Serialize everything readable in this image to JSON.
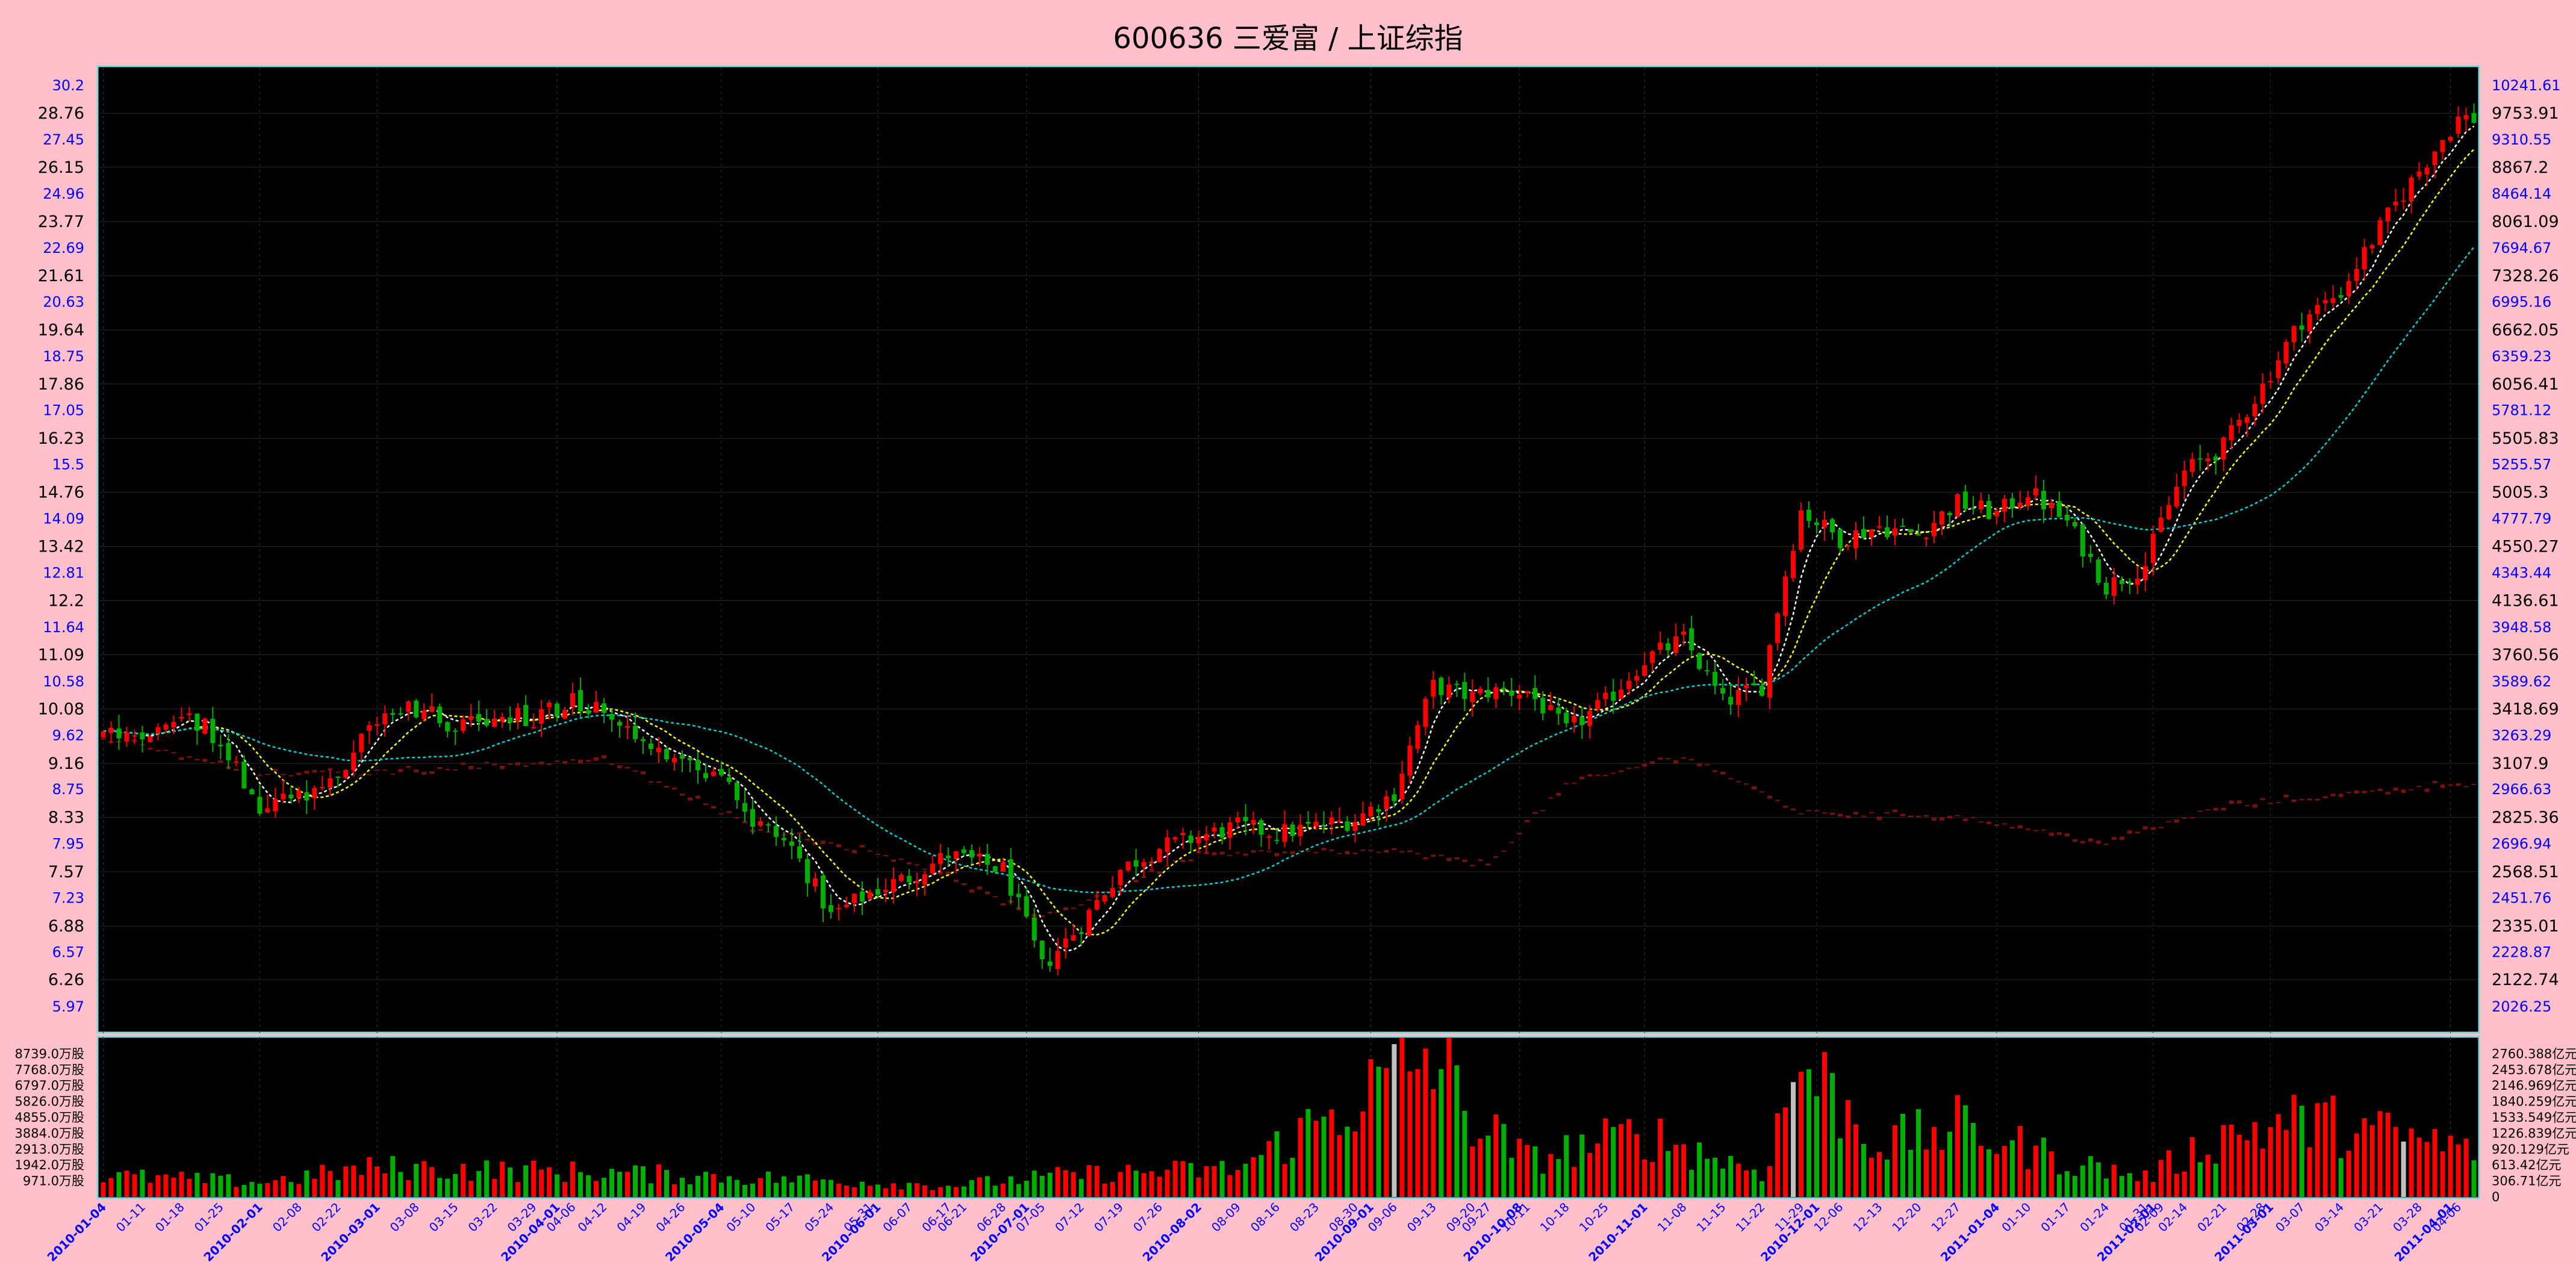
{
  "title": "600636 三爱富 / 上证综指",
  "colors": {
    "background": "#ffc0cb",
    "panel": "#000000",
    "panel_border": "#7fd7d7",
    "up_candle": "#ff0000",
    "down_candle": "#00b000",
    "ma_short": "#ffffff",
    "ma_mid": "#ffff00",
    "ma_long": "#00d0d0",
    "index_candles": "#7a1010",
    "price_axis_labels": "#000000",
    "log_axis_labels": "#0000ff",
    "date_labels": "#0000ff",
    "highlight_volume": "#c0c0c0"
  },
  "chart_data": {
    "type": "candlestick",
    "title": "600636 三爱富 / 上证综指",
    "grid": true,
    "x_range": [
      "2010-01-04",
      "2011-04-08"
    ],
    "price_axis": {
      "left_black": [
        "28.76",
        "26.15",
        "23.77",
        "21.61",
        "19.64",
        "17.86",
        "16.23",
        "14.76",
        "13.42",
        "12.2",
        "11.09",
        "10.08",
        "9.16",
        "8.33",
        "7.57",
        "6.88",
        "6.26"
      ],
      "left_blue": [
        "30.2",
        "27.45",
        "24.96",
        "22.69",
        "20.63",
        "18.75",
        "17.05",
        "15.5",
        "14.09",
        "12.81",
        "11.64",
        "10.58",
        "9.62",
        "8.75",
        "7.95",
        "7.23",
        "6.57",
        "5.97"
      ],
      "right_black": [
        "9753.91",
        "8867.2",
        "8061.09",
        "7328.26",
        "6662.05",
        "6056.41",
        "5505.83",
        "5005.3",
        "4550.27",
        "4136.61",
        "3760.56",
        "3418.69",
        "3107.9",
        "2825.36",
        "2568.51",
        "2335.01",
        "2122.74"
      ],
      "right_blue": [
        "10241.61",
        "9310.55",
        "8464.14",
        "7694.67",
        "6995.16",
        "6359.23",
        "5781.12",
        "5255.57",
        "4777.79",
        "4343.44",
        "3948.58",
        "3589.62",
        "3263.29",
        "2966.63",
        "2696.94",
        "2451.76",
        "2228.87",
        "2026.25"
      ],
      "log_scale": true,
      "ylim": [
        5.97,
        30.2
      ]
    },
    "volume_axis": {
      "left": [
        "8739.0万股",
        "7768.0万股",
        "6797.0万股",
        "5826.0万股",
        "4855.0万股",
        "3884.0万股",
        "2913.0万股",
        "1942.0万股",
        "971.0万股"
      ],
      "right": [
        "2760.388亿元",
        "2453.678亿元",
        "2146.969亿元",
        "1840.259亿元",
        "1533.549亿元",
        "1226.839亿元",
        "920.129亿元",
        "613.42亿元",
        "306.71亿元",
        "0"
      ]
    },
    "x_tick_labels": [
      {
        "date": "2010-01-04",
        "label": "2010-01-04",
        "bold": true
      },
      {
        "date": "2010-01-11",
        "label": "01-11"
      },
      {
        "date": "2010-01-18",
        "label": "01-18"
      },
      {
        "date": "2010-01-25",
        "label": "01-25"
      },
      {
        "date": "2010-02-01",
        "label": "2010-02-01",
        "bold": true
      },
      {
        "date": "2010-02-08",
        "label": "02-08"
      },
      {
        "date": "2010-02-22",
        "label": "02-22"
      },
      {
        "date": "2010-03-01",
        "label": "2010-03-01",
        "bold": true
      },
      {
        "date": "2010-03-08",
        "label": "03-08"
      },
      {
        "date": "2010-03-15",
        "label": "03-15"
      },
      {
        "date": "2010-03-22",
        "label": "03-22"
      },
      {
        "date": "2010-03-29",
        "label": "03-29"
      },
      {
        "date": "2010-04-01",
        "label": "2010-04-01",
        "bold": true
      },
      {
        "date": "2010-04-06",
        "label": "04-06"
      },
      {
        "date": "2010-04-12",
        "label": "04-12"
      },
      {
        "date": "2010-04-19",
        "label": "04-19"
      },
      {
        "date": "2010-04-26",
        "label": "04-26"
      },
      {
        "date": "2010-05-04",
        "label": "2010-05-04",
        "bold": true
      },
      {
        "date": "2010-05-10",
        "label": "05-10"
      },
      {
        "date": "2010-05-17",
        "label": "05-17"
      },
      {
        "date": "2010-05-24",
        "label": "05-24"
      },
      {
        "date": "2010-05-31",
        "label": "05-31"
      },
      {
        "date": "2010-06-01",
        "label": "2010-06-01",
        "bold": true
      },
      {
        "date": "2010-06-07",
        "label": "06-07"
      },
      {
        "date": "2010-06-17",
        "label": "06-17"
      },
      {
        "date": "2010-06-21",
        "label": "06-21"
      },
      {
        "date": "2010-06-28",
        "label": "06-28"
      },
      {
        "date": "2010-07-01",
        "label": "2010-07-01",
        "bold": true
      },
      {
        "date": "2010-07-05",
        "label": "07-05"
      },
      {
        "date": "2010-07-12",
        "label": "07-12"
      },
      {
        "date": "2010-07-19",
        "label": "07-19"
      },
      {
        "date": "2010-07-26",
        "label": "07-26"
      },
      {
        "date": "2010-08-02",
        "label": "2010-08-02",
        "bold": true
      },
      {
        "date": "2010-08-09",
        "label": "08-09"
      },
      {
        "date": "2010-08-16",
        "label": "08-16"
      },
      {
        "date": "2010-08-23",
        "label": "08-23"
      },
      {
        "date": "2010-08-30",
        "label": "08-30"
      },
      {
        "date": "2010-09-01",
        "label": "2010-09-01",
        "bold": true
      },
      {
        "date": "2010-09-06",
        "label": "09-06"
      },
      {
        "date": "2010-09-13",
        "label": "09-13"
      },
      {
        "date": "2010-09-20",
        "label": "09-20"
      },
      {
        "date": "2010-09-27",
        "label": "09-27"
      },
      {
        "date": "2010-10-08",
        "label": "2010-10-08",
        "bold": true
      },
      {
        "date": "2010-10-11",
        "label": "10-11"
      },
      {
        "date": "2010-10-18",
        "label": "10-18"
      },
      {
        "date": "2010-10-25",
        "label": "10-25"
      },
      {
        "date": "2010-11-01",
        "label": "2010-11-01",
        "bold": true
      },
      {
        "date": "2010-11-08",
        "label": "11-08"
      },
      {
        "date": "2010-11-15",
        "label": "11-15"
      },
      {
        "date": "2010-11-22",
        "label": "11-22"
      },
      {
        "date": "2010-11-29",
        "label": "11-29"
      },
      {
        "date": "2010-12-01",
        "label": "2010-12-01",
        "bold": true
      },
      {
        "date": "2010-12-06",
        "label": "12-06"
      },
      {
        "date": "2010-12-13",
        "label": "12-13"
      },
      {
        "date": "2010-12-20",
        "label": "12-20"
      },
      {
        "date": "2010-12-27",
        "label": "12-27"
      },
      {
        "date": "2011-01-04",
        "label": "2011-01-04",
        "bold": true
      },
      {
        "date": "2011-01-10",
        "label": "01-10"
      },
      {
        "date": "2011-01-17",
        "label": "01-17"
      },
      {
        "date": "2011-01-24",
        "label": "01-24"
      },
      {
        "date": "2011-01-31",
        "label": "01-31"
      },
      {
        "date": "2011-02-01",
        "label": "2011-02-01",
        "bold": true
      },
      {
        "date": "2011-02-09",
        "label": "02-09"
      },
      {
        "date": "2011-02-14",
        "label": "02-14"
      },
      {
        "date": "2011-02-21",
        "label": "02-21"
      },
      {
        "date": "2011-02-28",
        "label": "02-28"
      },
      {
        "date": "2011-03-01",
        "label": "2011-03-01",
        "bold": true
      },
      {
        "date": "2011-03-07",
        "label": "03-07"
      },
      {
        "date": "2011-03-14",
        "label": "03-14"
      },
      {
        "date": "2011-03-21",
        "label": "03-21"
      },
      {
        "date": "2011-03-28",
        "label": "03-28"
      },
      {
        "date": "2011-04-01",
        "label": "2011-04-01",
        "bold": true
      },
      {
        "date": "2011-04-06",
        "label": "04-06"
      }
    ],
    "price_keypoints": [
      {
        "date": "2010-01-04",
        "close": 9.7
      },
      {
        "date": "2010-01-11",
        "close": 9.6
      },
      {
        "date": "2010-01-18",
        "close": 10.1
      },
      {
        "date": "2010-01-25",
        "close": 9.5
      },
      {
        "date": "2010-02-01",
        "close": 8.45
      },
      {
        "date": "2010-02-08",
        "close": 8.6
      },
      {
        "date": "2010-02-22",
        "close": 9.0
      },
      {
        "date": "2010-03-01",
        "close": 9.9
      },
      {
        "date": "2010-03-08",
        "close": 10.1
      },
      {
        "date": "2010-03-15",
        "close": 9.8
      },
      {
        "date": "2010-03-22",
        "close": 10.0
      },
      {
        "date": "2010-03-29",
        "close": 9.9
      },
      {
        "date": "2010-04-06",
        "close": 10.2
      },
      {
        "date": "2010-04-12",
        "close": 10.1
      },
      {
        "date": "2010-04-19",
        "close": 9.5
      },
      {
        "date": "2010-04-26",
        "close": 9.3
      },
      {
        "date": "2010-05-04",
        "close": 8.9
      },
      {
        "date": "2010-05-10",
        "close": 8.3
      },
      {
        "date": "2010-05-17",
        "close": 7.9
      },
      {
        "date": "2010-05-24",
        "close": 7.0
      },
      {
        "date": "2010-05-31",
        "close": 7.3
      },
      {
        "date": "2010-06-07",
        "close": 7.5
      },
      {
        "date": "2010-06-17",
        "close": 7.8
      },
      {
        "date": "2010-06-28",
        "close": 7.6
      },
      {
        "date": "2010-07-05",
        "close": 6.4
      },
      {
        "date": "2010-07-12",
        "close": 6.9
      },
      {
        "date": "2010-07-19",
        "close": 7.6
      },
      {
        "date": "2010-07-26",
        "close": 7.9
      },
      {
        "date": "2010-08-09",
        "close": 8.2
      },
      {
        "date": "2010-08-16",
        "close": 8.1
      },
      {
        "date": "2010-08-30",
        "close": 8.3
      },
      {
        "date": "2010-09-06",
        "close": 8.7
      },
      {
        "date": "2010-09-13",
        "close": 10.5
      },
      {
        "date": "2010-09-20",
        "close": 10.3
      },
      {
        "date": "2010-09-27",
        "close": 10.4
      },
      {
        "date": "2010-10-11",
        "close": 10.4
      },
      {
        "date": "2010-10-18",
        "close": 9.7
      },
      {
        "date": "2010-10-25",
        "close": 10.2
      },
      {
        "date": "2010-11-01",
        "close": 11.0
      },
      {
        "date": "2010-11-08",
        "close": 11.4
      },
      {
        "date": "2010-11-15",
        "close": 10.2
      },
      {
        "date": "2010-11-22",
        "close": 10.5
      },
      {
        "date": "2010-11-29",
        "close": 14.3
      },
      {
        "date": "2010-12-06",
        "close": 13.6
      },
      {
        "date": "2010-12-13",
        "close": 13.9
      },
      {
        "date": "2010-12-20",
        "close": 13.7
      },
      {
        "date": "2010-12-27",
        "close": 14.5
      },
      {
        "date": "2011-01-04",
        "close": 14.2
      },
      {
        "date": "2011-01-10",
        "close": 14.8
      },
      {
        "date": "2011-01-17",
        "close": 14.0
      },
      {
        "date": "2011-01-24",
        "close": 12.5
      },
      {
        "date": "2011-01-31",
        "close": 13.0
      },
      {
        "date": "2011-02-09",
        "close": 14.0
      },
      {
        "date": "2011-02-14",
        "close": 15.3
      },
      {
        "date": "2011-02-21",
        "close": 16.0
      },
      {
        "date": "2011-02-28",
        "close": 17.8
      },
      {
        "date": "2011-03-07",
        "close": 20.0
      },
      {
        "date": "2011-03-14",
        "close": 21.0
      },
      {
        "date": "2011-03-21",
        "close": 23.5
      },
      {
        "date": "2011-03-28",
        "close": 26.0
      },
      {
        "date": "2011-04-06",
        "close": 28.5
      }
    ],
    "index_keypoints": [
      {
        "date": "2010-01-04",
        "close": 3250
      },
      {
        "date": "2010-02-01",
        "close": 3050
      },
      {
        "date": "2010-03-01",
        "close": 3060
      },
      {
        "date": "2010-04-12",
        "close": 3130
      },
      {
        "date": "2010-05-10",
        "close": 2780
      },
      {
        "date": "2010-06-07",
        "close": 2620
      },
      {
        "date": "2010-07-05",
        "close": 2360
      },
      {
        "date": "2010-08-02",
        "close": 2650
      },
      {
        "date": "2010-09-06",
        "close": 2660
      },
      {
        "date": "2010-09-27",
        "close": 2600
      },
      {
        "date": "2010-10-18",
        "close": 2990
      },
      {
        "date": "2010-11-08",
        "close": 3150
      },
      {
        "date": "2010-11-29",
        "close": 2850
      },
      {
        "date": "2010-12-27",
        "close": 2830
      },
      {
        "date": "2011-01-24",
        "close": 2700
      },
      {
        "date": "2011-02-21",
        "close": 2880
      },
      {
        "date": "2011-03-14",
        "close": 2940
      },
      {
        "date": "2011-04-06",
        "close": 3000
      }
    ],
    "volume_keypoints": [
      {
        "date": "2010-01-04",
        "volume": 1300
      },
      {
        "date": "2010-02-01",
        "volume": 900
      },
      {
        "date": "2010-03-01",
        "volume": 1800
      },
      {
        "date": "2010-04-12",
        "volume": 1500
      },
      {
        "date": "2010-05-17",
        "volume": 1100
      },
      {
        "date": "2010-06-17",
        "volume": 700
      },
      {
        "date": "2010-07-12",
        "volume": 1400
      },
      {
        "date": "2010-08-09",
        "volume": 1700
      },
      {
        "date": "2010-09-13",
        "volume": 8700
      },
      {
        "date": "2010-09-20",
        "volume": 4800
      },
      {
        "date": "2010-10-11",
        "volume": 2300
      },
      {
        "date": "2010-11-01",
        "volume": 3900
      },
      {
        "date": "2010-11-22",
        "volume": 1500
      },
      {
        "date": "2010-11-29",
        "volume": 8300
      },
      {
        "date": "2010-12-13",
        "volume": 3200
      },
      {
        "date": "2010-12-27",
        "volume": 4300
      },
      {
        "date": "2011-01-17",
        "volume": 2200
      },
      {
        "date": "2011-01-31",
        "volume": 1200
      },
      {
        "date": "2011-02-21",
        "volume": 3800
      },
      {
        "date": "2011-03-07",
        "volume": 4700
      },
      {
        "date": "2011-03-28",
        "volume": 3500
      },
      {
        "date": "2011-04-06",
        "volume": 3000
      }
    ],
    "highlight_volume_dates": [
      "2010-09-06",
      "2010-11-26",
      "2011-03-24"
    ]
  }
}
